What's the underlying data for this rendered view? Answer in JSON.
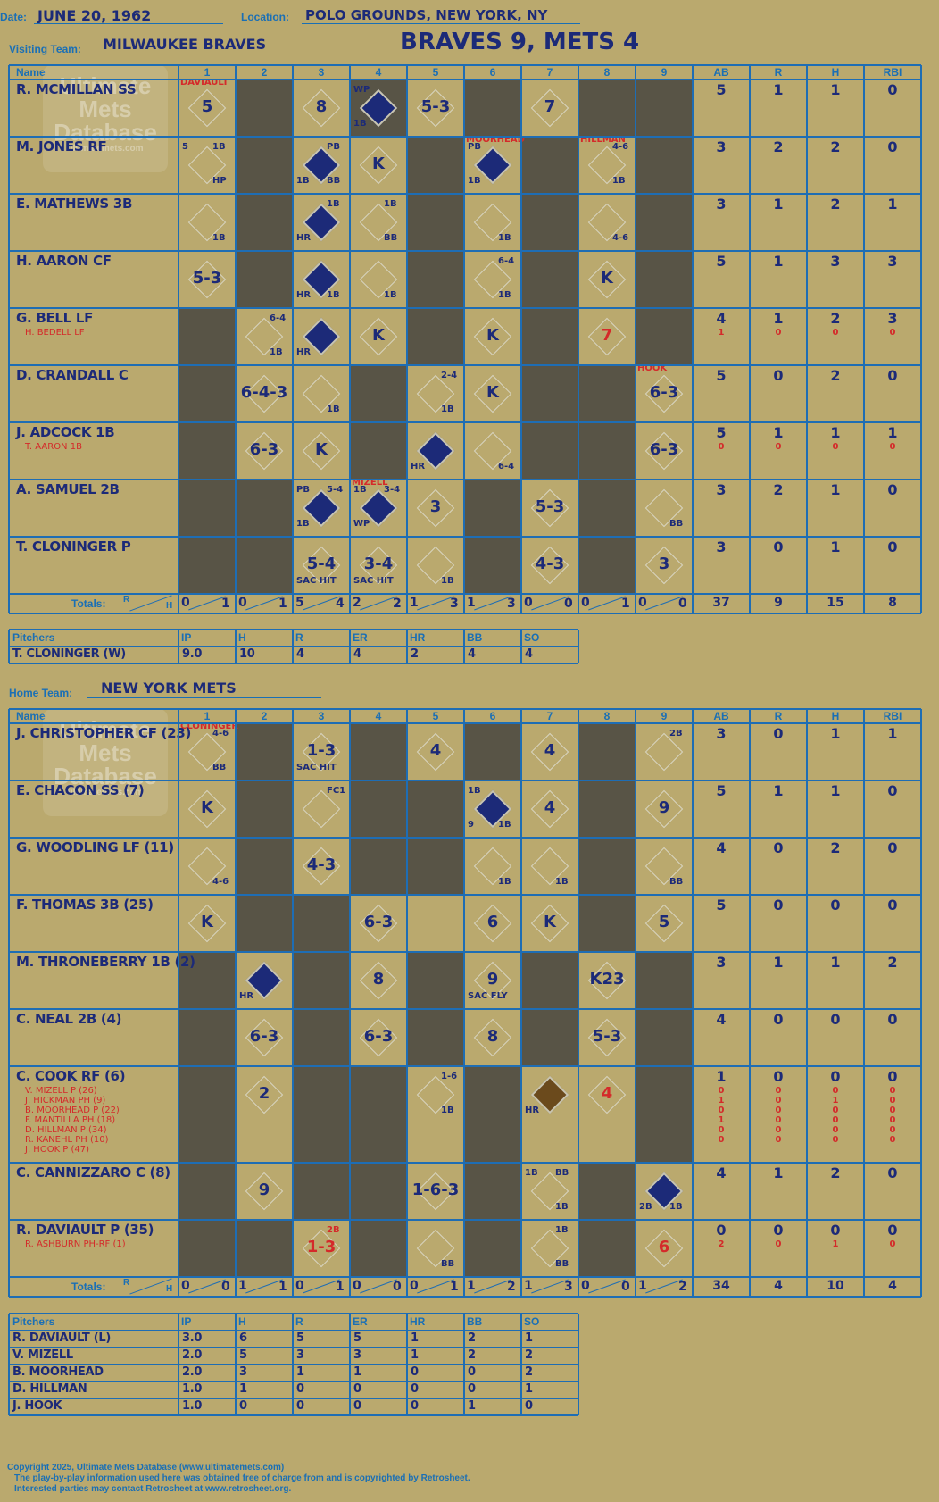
{
  "header": {
    "date_label": "Date:",
    "date": "JUNE 20, 1962",
    "location_label": "Location:",
    "location": "POLO GROUNDS, NEW YORK, NY",
    "visiting_label": "Visiting Team:",
    "visiting_team": "MILWAUKEE BRAVES",
    "home_label": "Home Team:",
    "home_team": "NEW YORK METS",
    "final": "BRAVES 9, METS 4"
  },
  "columns": {
    "name": "Name",
    "innings": [
      "1",
      "2",
      "3",
      "4",
      "5",
      "6",
      "7",
      "8",
      "9"
    ],
    "stats": [
      "AB",
      "R",
      "H",
      "RBI"
    ],
    "totals": "Totals:",
    "r": "R",
    "h": "H"
  },
  "pitch_columns": {
    "pitchers": "Pitchers",
    "cols": [
      "IP",
      "H",
      "R",
      "ER",
      "HR",
      "BB",
      "SO"
    ]
  },
  "watermark": {
    "line1": "Ultimate",
    "line2": "Mets",
    "line3": "Database",
    "url": "ultimatemets.com"
  },
  "visitors": {
    "batters": [
      {
        "name": "R. MCMILLAN SS",
        "subs": [],
        "ab": [
          "5"
        ],
        "r": [
          "1"
        ],
        "h": [
          "1"
        ],
        "rbi": [
          "0"
        ]
      },
      {
        "name": "M. JONES RF",
        "subs": [],
        "ab": [
          "3"
        ],
        "r": [
          "2"
        ],
        "h": [
          "2"
        ],
        "rbi": [
          "0"
        ]
      },
      {
        "name": "E. MATHEWS 3B",
        "subs": [],
        "ab": [
          "3"
        ],
        "r": [
          "1"
        ],
        "h": [
          "2"
        ],
        "rbi": [
          "1"
        ]
      },
      {
        "name": "H. AARON CF",
        "subs": [],
        "ab": [
          "5"
        ],
        "r": [
          "1"
        ],
        "h": [
          "3"
        ],
        "rbi": [
          "3"
        ]
      },
      {
        "name": "G. BELL LF",
        "subs": [
          "H. BEDELL LF"
        ],
        "ab": [
          "4",
          "1"
        ],
        "r": [
          "1",
          "0"
        ],
        "h": [
          "2",
          "0"
        ],
        "rbi": [
          "3",
          "0"
        ]
      },
      {
        "name": "D. CRANDALL C",
        "subs": [],
        "ab": [
          "5"
        ],
        "r": [
          "0"
        ],
        "h": [
          "2"
        ],
        "rbi": [
          "0"
        ]
      },
      {
        "name": "J. ADCOCK 1B",
        "subs": [
          "T. AARON 1B"
        ],
        "ab": [
          "5",
          "0"
        ],
        "r": [
          "1",
          "0"
        ],
        "h": [
          "1",
          "0"
        ],
        "rbi": [
          "1",
          "0"
        ]
      },
      {
        "name": "A. SAMUEL 2B",
        "subs": [],
        "ab": [
          "3"
        ],
        "r": [
          "2"
        ],
        "h": [
          "1"
        ],
        "rbi": [
          "0"
        ]
      },
      {
        "name": "T. CLONINGER P",
        "subs": [],
        "ab": [
          "3"
        ],
        "r": [
          "0"
        ],
        "h": [
          "1"
        ],
        "rbi": [
          "0"
        ]
      }
    ],
    "cells": [
      [
        {
          "i": 1,
          "t": "5",
          "n": "DAVIAULT"
        },
        {
          "i": 3,
          "t": "8"
        },
        {
          "i": 4,
          "d": "fill",
          "tl": "WP",
          "bl": "1B"
        },
        {
          "i": 5,
          "t": "5-3"
        },
        {
          "i": 7,
          "t": "7"
        }
      ],
      [
        {
          "i": 1,
          "tl": "5",
          "tr": "1B",
          "br": "HP"
        },
        {
          "i": 3,
          "d": "fill",
          "tr": "PB",
          "bl": "1B",
          "br": "BB"
        },
        {
          "i": 4,
          "t": "K"
        },
        {
          "i": 6,
          "d": "fill",
          "tl": "PB",
          "bl": "1B",
          "n": "MOORHEAD"
        },
        {
          "i": 8,
          "tr": "4-6",
          "br": "1B",
          "n": "HILLMAN"
        }
      ],
      [
        {
          "i": 1,
          "br": "1B"
        },
        {
          "i": 3,
          "d": "fill",
          "tr": "1B",
          "bl": "HR"
        },
        {
          "i": 4,
          "tr": "1B",
          "br": "BB"
        },
        {
          "i": 6,
          "br": "1B"
        },
        {
          "i": 8,
          "br": "4-6"
        }
      ],
      [
        {
          "i": 1,
          "t": "5-3"
        },
        {
          "i": 3,
          "d": "fill",
          "bl": "HR",
          "br": "1B"
        },
        {
          "i": 4,
          "br": "1B"
        },
        {
          "i": 6,
          "tr": "6-4",
          "br": "1B"
        },
        {
          "i": 8,
          "t": "K"
        }
      ],
      [
        {
          "i": 2,
          "tr": "6-4",
          "br": "1B"
        },
        {
          "i": 3,
          "d": "fill",
          "bl": "HR"
        },
        {
          "i": 4,
          "t": "K"
        },
        {
          "i": 6,
          "t": "K"
        },
        {
          "i": 8,
          "t": "7",
          "red": true
        }
      ],
      [
        {
          "i": 2,
          "t": "6-4-3"
        },
        {
          "i": 3,
          "br": "1B"
        },
        {
          "i": 5,
          "tr": "2-4",
          "br": "1B"
        },
        {
          "i": 6,
          "t": "K"
        },
        {
          "i": 9,
          "t": "6-3",
          "n": "HOOK"
        }
      ],
      [
        {
          "i": 2,
          "t": "6-3"
        },
        {
          "i": 3,
          "t": "K"
        },
        {
          "i": 5,
          "d": "fill",
          "bl": "HR"
        },
        {
          "i": 6,
          "br": "6-4"
        },
        {
          "i": 9,
          "t": "6-3"
        }
      ],
      [
        {
          "i": 3,
          "d": "fill",
          "tl": "PB",
          "tr": "5-4",
          "bl": "1B"
        },
        {
          "i": 4,
          "d": "fill",
          "tl": "1B",
          "tr": "3-4",
          "bl": "WP",
          "n": "MIZELL"
        },
        {
          "i": 5,
          "t": "3"
        },
        {
          "i": 7,
          "t": "5-3"
        },
        {
          "i": 9,
          "br": "BB"
        }
      ],
      [
        {
          "i": 3,
          "t": "5-4",
          "bl": "SAC HIT"
        },
        {
          "i": 4,
          "t": "3-4",
          "bl": "SAC HIT"
        },
        {
          "i": 5,
          "br": "1B"
        },
        {
          "i": 7,
          "t": "4-3"
        },
        {
          "i": 9,
          "t": "3"
        }
      ]
    ],
    "dark": [
      [
        2,
        4,
        6,
        8,
        9
      ],
      [
        2,
        5,
        7,
        9
      ],
      [
        2,
        5,
        7,
        9
      ],
      [
        2,
        5,
        7,
        9
      ],
      [
        1,
        5,
        7,
        9
      ],
      [
        1,
        4,
        7,
        8
      ],
      [
        1,
        4,
        7,
        8
      ],
      [
        1,
        2,
        6,
        8
      ],
      [
        1,
        2,
        6,
        8
      ]
    ],
    "totals": {
      "innings": [
        [
          "0",
          "1"
        ],
        [
          "0",
          "1"
        ],
        [
          "5",
          "4"
        ],
        [
          "2",
          "2"
        ],
        [
          "1",
          "3"
        ],
        [
          "1",
          "3"
        ],
        [
          "0",
          "0"
        ],
        [
          "0",
          "1"
        ],
        [
          "0",
          "0"
        ]
      ],
      "ab": "37",
      "r": "9",
      "h": "15",
      "rbi": "8"
    },
    "pitchers": [
      {
        "name": "T. CLONINGER (W)",
        "stats": [
          "9.0",
          "10",
          "4",
          "4",
          "2",
          "4",
          "4"
        ]
      }
    ]
  },
  "home": {
    "batters": [
      {
        "name": "J. CHRISTOPHER CF (23)",
        "subs": [],
        "ab": [
          "3"
        ],
        "r": [
          "0"
        ],
        "h": [
          "1"
        ],
        "rbi": [
          "1"
        ]
      },
      {
        "name": "E. CHACON SS (7)",
        "subs": [],
        "ab": [
          "5"
        ],
        "r": [
          "1"
        ],
        "h": [
          "1"
        ],
        "rbi": [
          "0"
        ]
      },
      {
        "name": "G. WOODLING LF (11)",
        "subs": [],
        "ab": [
          "4"
        ],
        "r": [
          "0"
        ],
        "h": [
          "2"
        ],
        "rbi": [
          "0"
        ]
      },
      {
        "name": "F. THOMAS 3B (25)",
        "subs": [],
        "ab": [
          "5"
        ],
        "r": [
          "0"
        ],
        "h": [
          "0"
        ],
        "rbi": [
          "0"
        ]
      },
      {
        "name": "M. THRONEBERRY 1B (2)",
        "subs": [],
        "ab": [
          "3"
        ],
        "r": [
          "1"
        ],
        "h": [
          "1"
        ],
        "rbi": [
          "2"
        ]
      },
      {
        "name": "C. NEAL 2B (4)",
        "subs": [],
        "ab": [
          "4"
        ],
        "r": [
          "0"
        ],
        "h": [
          "0"
        ],
        "rbi": [
          "0"
        ]
      },
      {
        "name": "C. COOK RF (6)",
        "subs": [
          "V. MIZELL P (26)",
          "J. HICKMAN PH (9)",
          "B. MOORHEAD P (22)",
          "F. MANTILLA PH (18)",
          "D. HILLMAN P (34)",
          "R. KANEHL PH (10)",
          "J. HOOK P (47)"
        ],
        "ab": [
          "1",
          "0",
          "1",
          "0",
          "1",
          "0",
          "0"
        ],
        "r": [
          "0",
          "0",
          "0",
          "0",
          "0",
          "0",
          "0"
        ],
        "h": [
          "0",
          "0",
          "1",
          "0",
          "0",
          "0",
          "0"
        ],
        "rbi": [
          "0",
          "0",
          "0",
          "0",
          "0",
          "0",
          "0"
        ]
      },
      {
        "name": "C. CANNIZZARO C (8)",
        "subs": [],
        "ab": [
          "4"
        ],
        "r": [
          "1"
        ],
        "h": [
          "2"
        ],
        "rbi": [
          "0"
        ]
      },
      {
        "name": "R. DAVIAULT P (35)",
        "subs": [
          "R. ASHBURN PH-RF (1)"
        ],
        "ab": [
          "0",
          "2"
        ],
        "r": [
          "0",
          "0"
        ],
        "h": [
          "0",
          "1"
        ],
        "rbi": [
          "0",
          "0"
        ]
      }
    ],
    "cells": [
      [
        {
          "i": 1,
          "tr": "4-6",
          "br": "BB",
          "n": "CLONINGER"
        },
        {
          "i": 3,
          "t": "1-3",
          "bl": "SAC HIT"
        },
        {
          "i": 5,
          "t": "4"
        },
        {
          "i": 7,
          "t": "4"
        },
        {
          "i": 9,
          "tr": "2B"
        }
      ],
      [
        {
          "i": 1,
          "t": "K"
        },
        {
          "i": 3,
          "tr": "FC1"
        },
        {
          "i": 6,
          "d": "fill",
          "tl": "1B",
          "bl": "9",
          "br": "1B"
        },
        {
          "i": 7,
          "t": "4"
        },
        {
          "i": 9,
          "t": "9"
        }
      ],
      [
        {
          "i": 1,
          "br": "4-6"
        },
        {
          "i": 3,
          "t": "4-3"
        },
        {
          "i": 6,
          "br": "1B"
        },
        {
          "i": 7,
          "br": "1B"
        },
        {
          "i": 9,
          "br": "BB"
        }
      ],
      [
        {
          "i": 1,
          "t": "K"
        },
        {
          "i": 4,
          "t": "6-3"
        },
        {
          "i": 6,
          "t": "6"
        },
        {
          "i": 7,
          "t": "K"
        },
        {
          "i": 9,
          "t": "5"
        }
      ],
      [
        {
          "i": 2,
          "d": "fill",
          "bl": "HR"
        },
        {
          "i": 4,
          "t": "8"
        },
        {
          "i": 6,
          "t": "9",
          "bl": "SAC FLY"
        },
        {
          "i": 8,
          "t": "K23"
        }
      ],
      [
        {
          "i": 2,
          "t": "6-3"
        },
        {
          "i": 4,
          "t": "6-3"
        },
        {
          "i": 6,
          "t": "8"
        },
        {
          "i": 8,
          "t": "5-3"
        }
      ],
      [
        {
          "i": 2,
          "t": "2"
        },
        {
          "i": 5,
          "tr": "1-6",
          "br": "1B"
        },
        {
          "i": 7,
          "d": "brown",
          "bl": "HR"
        },
        {
          "i": 8,
          "t": "4",
          "red": true
        }
      ],
      [
        {
          "i": 2,
          "t": "9"
        },
        {
          "i": 5,
          "t": "1-6-3"
        },
        {
          "i": 7,
          "tl": "1B",
          "tr": "BB",
          "br": "1B"
        },
        {
          "i": 9,
          "d": "fill",
          "bl": "2B",
          "br": "1B"
        }
      ],
      [
        {
          "i": 3,
          "t": "1-3",
          "tr": "2B",
          "red": true
        },
        {
          "i": 5,
          "br": "BB"
        },
        {
          "i": 7,
          "tr": "1B",
          "br": "BB"
        },
        {
          "i": 9,
          "t": "6",
          "red": true
        }
      ]
    ],
    "dark": [
      [
        2,
        4,
        6,
        8
      ],
      [
        2,
        4,
        5,
        8
      ],
      [
        2,
        4,
        5,
        8
      ],
      [
        2,
        3,
        8
      ],
      [
        1,
        3,
        5,
        7,
        9
      ],
      [
        1,
        3,
        5,
        7,
        9
      ],
      [
        1,
        3,
        4,
        6,
        9
      ],
      [
        1,
        3,
        4,
        6,
        8
      ],
      [
        1,
        2,
        4,
        6,
        8
      ]
    ],
    "totals": {
      "innings": [
        [
          "0",
          "0"
        ],
        [
          "1",
          "1"
        ],
        [
          "0",
          "1"
        ],
        [
          "0",
          "0"
        ],
        [
          "0",
          "1"
        ],
        [
          "1",
          "2"
        ],
        [
          "1",
          "3"
        ],
        [
          "0",
          "0"
        ],
        [
          "1",
          "2"
        ]
      ],
      "ab": "34",
      "r": "4",
      "h": "10",
      "rbi": "4"
    },
    "pitchers": [
      {
        "name": "R. DAVIAULT (L)",
        "stats": [
          "3.0",
          "6",
          "5",
          "5",
          "1",
          "2",
          "1"
        ]
      },
      {
        "name": "V. MIZELL",
        "stats": [
          "2.0",
          "5",
          "3",
          "3",
          "1",
          "2",
          "2"
        ]
      },
      {
        "name": "B. MOORHEAD",
        "stats": [
          "2.0",
          "3",
          "1",
          "1",
          "0",
          "0",
          "2"
        ]
      },
      {
        "name": "D. HILLMAN",
        "stats": [
          "1.0",
          "1",
          "0",
          "0",
          "0",
          "0",
          "1"
        ]
      },
      {
        "name": "J. HOOK",
        "stats": [
          "1.0",
          "0",
          "0",
          "0",
          "0",
          "1",
          "0"
        ]
      }
    ]
  },
  "footer": {
    "line1": "Copyright 2025, Ultimate Mets Database (www.ultimatemets.com)",
    "line2": "The play-by-play information used here was obtained free of charge from and is copyrighted by Retrosheet.",
    "line3": "Interested parties may contact Retrosheet at www.retrosheet.org."
  },
  "colors": {
    "background": "#baa96e",
    "grid": "#1e6db4",
    "dark": "#585446",
    "ink": "#1c2a78",
    "red": "#d42a2a"
  }
}
